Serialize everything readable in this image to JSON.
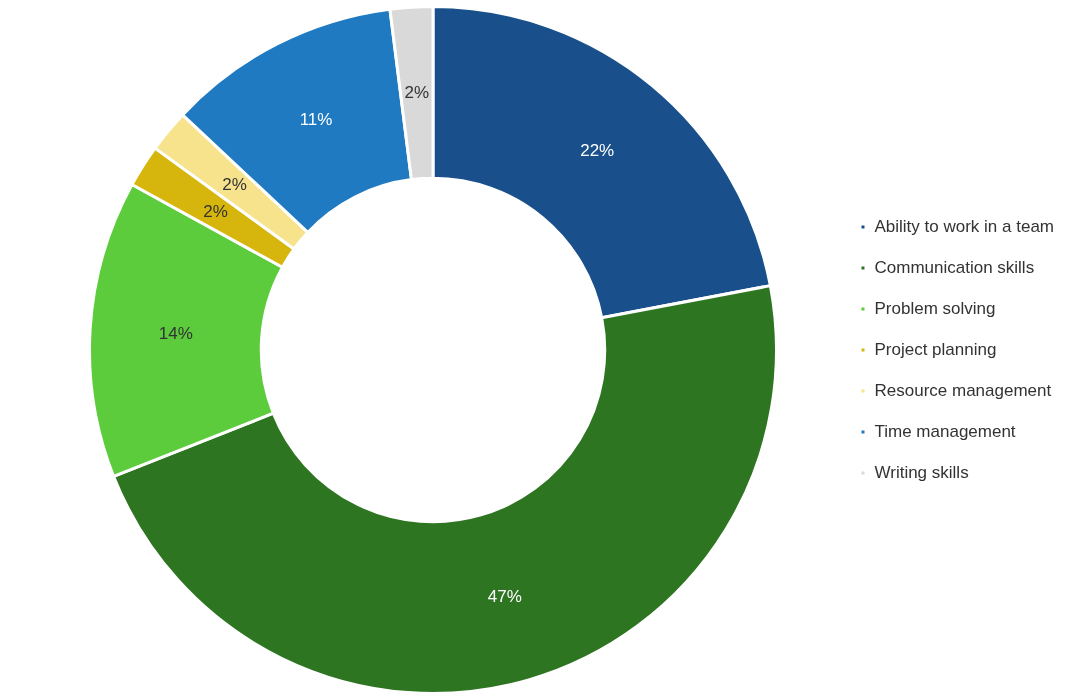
{
  "chart_data": {
    "type": "donut",
    "categories": [
      "Ability to work in a team",
      "Communication skills",
      "Problem solving",
      "Project planning",
      "Resource management",
      "Time management",
      "Writing skills"
    ],
    "values": [
      22,
      47,
      14,
      2,
      2,
      11,
      2
    ],
    "value_labels": [
      "22%",
      "47%",
      "14%",
      "2%",
      "2%",
      "11%",
      "2%"
    ],
    "colors": [
      "#194f8a",
      "#2e7522",
      "#5ccb3c",
      "#d6b50c",
      "#f6e38c",
      "#1f7ac2",
      "#d9d9d9"
    ],
    "legend": "right"
  }
}
